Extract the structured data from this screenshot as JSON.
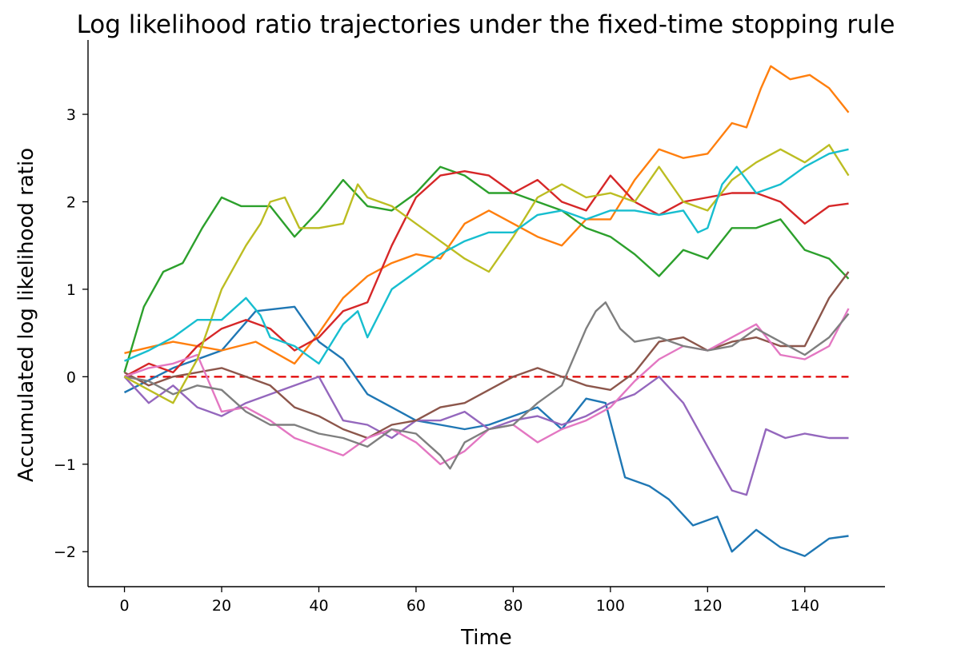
{
  "chart_data": {
    "type": "line",
    "title": "Log likelihood ratio trajectories under the fixed-time stopping rule",
    "xlabel": "Time",
    "ylabel": "Accumulated log likelihood ratio",
    "xlim": [
      -7.5,
      156.5
    ],
    "ylim": [
      -2.4,
      3.85
    ],
    "xticks": [
      0,
      20,
      40,
      60,
      80,
      100,
      120,
      140
    ],
    "yticks": [
      -2,
      -1,
      0,
      1,
      2,
      3
    ],
    "ytick_labels": [
      "−2",
      "−1",
      "0",
      "1",
      "2",
      "3"
    ],
    "grid": false,
    "reference_line": {
      "y": 0,
      "x_range": [
        0,
        149
      ],
      "color": "#e00000",
      "style": "dashed"
    },
    "series": [
      {
        "color": "#1f77b4",
        "x": [
          0,
          10,
          20,
          27,
          35,
          40,
          45,
          50,
          55,
          60,
          65,
          70,
          75,
          80,
          85,
          90,
          95,
          99,
          103,
          108,
          112,
          117,
          122,
          125,
          130,
          135,
          140,
          145,
          149
        ],
        "y": [
          -0.18,
          0.1,
          0.3,
          0.75,
          0.8,
          0.4,
          0.2,
          -0.2,
          -0.35,
          -0.5,
          -0.55,
          -0.6,
          -0.55,
          -0.45,
          -0.35,
          -0.6,
          -0.25,
          -0.3,
          -1.15,
          -1.25,
          -1.4,
          -1.7,
          -1.6,
          -2.0,
          -1.75,
          -1.95,
          -2.05,
          -1.85,
          -1.82
        ]
      },
      {
        "color": "#ff7f0e",
        "x": [
          0,
          10,
          20,
          27,
          35,
          40,
          45,
          50,
          55,
          60,
          65,
          70,
          75,
          80,
          85,
          90,
          95,
          100,
          105,
          110,
          115,
          120,
          125,
          128,
          131,
          133,
          137,
          141,
          145,
          149
        ],
        "y": [
          0.27,
          0.4,
          0.3,
          0.4,
          0.15,
          0.5,
          0.9,
          1.15,
          1.3,
          1.4,
          1.35,
          1.75,
          1.9,
          1.75,
          1.6,
          1.5,
          1.8,
          1.8,
          2.25,
          2.6,
          2.5,
          2.55,
          2.9,
          2.85,
          3.3,
          3.55,
          3.4,
          3.45,
          3.3,
          3.02
        ]
      },
      {
        "color": "#2ca02c",
        "x": [
          0,
          4,
          8,
          12,
          16,
          20,
          24,
          30,
          35,
          40,
          45,
          50,
          55,
          60,
          65,
          70,
          75,
          80,
          85,
          90,
          95,
          100,
          105,
          110,
          115,
          120,
          125,
          130,
          135,
          140,
          145,
          149
        ],
        "y": [
          0.05,
          0.8,
          1.2,
          1.3,
          1.7,
          2.05,
          1.95,
          1.95,
          1.6,
          1.9,
          2.25,
          1.95,
          1.9,
          2.1,
          2.4,
          2.3,
          2.1,
          2.1,
          2.0,
          1.9,
          1.7,
          1.6,
          1.4,
          1.15,
          1.45,
          1.35,
          1.7,
          1.7,
          1.8,
          1.45,
          1.35,
          1.12
        ]
      },
      {
        "color": "#d62728",
        "x": [
          0,
          5,
          10,
          15,
          20,
          25,
          30,
          35,
          40,
          45,
          50,
          55,
          60,
          65,
          70,
          75,
          80,
          85,
          90,
          95,
          100,
          105,
          110,
          115,
          120,
          125,
          130,
          135,
          140,
          145,
          149
        ],
        "y": [
          0.0,
          0.15,
          0.05,
          0.35,
          0.55,
          0.65,
          0.55,
          0.3,
          0.45,
          0.75,
          0.85,
          1.5,
          2.05,
          2.3,
          2.35,
          2.3,
          2.1,
          2.25,
          2.0,
          1.9,
          2.3,
          2.0,
          1.85,
          2.0,
          2.05,
          2.1,
          2.1,
          2.0,
          1.75,
          1.95,
          1.98
        ]
      },
      {
        "color": "#9467bd",
        "x": [
          0,
          5,
          10,
          15,
          20,
          25,
          30,
          35,
          40,
          45,
          50,
          55,
          60,
          65,
          70,
          75,
          80,
          85,
          90,
          95,
          100,
          105,
          110,
          115,
          120,
          125,
          128,
          132,
          136,
          140,
          145,
          149
        ],
        "y": [
          0.0,
          -0.3,
          -0.1,
          -0.35,
          -0.45,
          -0.3,
          -0.2,
          -0.1,
          0.0,
          -0.5,
          -0.55,
          -0.7,
          -0.5,
          -0.5,
          -0.4,
          -0.6,
          -0.5,
          -0.45,
          -0.55,
          -0.45,
          -0.3,
          -0.2,
          0.0,
          -0.3,
          -0.8,
          -1.3,
          -1.35,
          -0.6,
          -0.7,
          -0.65,
          -0.7,
          -0.7
        ]
      },
      {
        "color": "#8c564b",
        "x": [
          0,
          5,
          10,
          15,
          20,
          25,
          30,
          35,
          40,
          45,
          50,
          55,
          60,
          65,
          70,
          75,
          80,
          85,
          90,
          95,
          100,
          105,
          110,
          115,
          120,
          125,
          130,
          135,
          140,
          145,
          149
        ],
        "y": [
          0.05,
          -0.1,
          0.0,
          0.05,
          0.1,
          0.0,
          -0.1,
          -0.35,
          -0.45,
          -0.6,
          -0.7,
          -0.55,
          -0.5,
          -0.35,
          -0.3,
          -0.15,
          0.0,
          0.1,
          0.0,
          -0.1,
          -0.15,
          0.05,
          0.4,
          0.45,
          0.3,
          0.4,
          0.45,
          0.35,
          0.35,
          0.9,
          1.2
        ]
      },
      {
        "color": "#e377c2",
        "x": [
          0,
          5,
          10,
          15,
          20,
          25,
          30,
          35,
          40,
          45,
          50,
          55,
          60,
          65,
          70,
          75,
          80,
          85,
          90,
          95,
          100,
          105,
          110,
          115,
          120,
          125,
          130,
          135,
          140,
          145,
          149
        ],
        "y": [
          0.0,
          0.1,
          0.15,
          0.25,
          -0.4,
          -0.35,
          -0.5,
          -0.7,
          -0.8,
          -0.9,
          -0.7,
          -0.6,
          -0.75,
          -1.0,
          -0.85,
          -0.6,
          -0.55,
          -0.75,
          -0.6,
          -0.5,
          -0.35,
          -0.05,
          0.2,
          0.35,
          0.3,
          0.45,
          0.6,
          0.25,
          0.2,
          0.35,
          0.78
        ]
      },
      {
        "color": "#7f7f7f",
        "x": [
          0,
          5,
          10,
          15,
          20,
          25,
          30,
          35,
          40,
          45,
          50,
          55,
          60,
          65,
          67,
          70,
          75,
          80,
          85,
          90,
          95,
          97,
          99,
          102,
          105,
          110,
          115,
          120,
          125,
          130,
          135,
          140,
          145,
          149
        ],
        "y": [
          0.0,
          -0.05,
          -0.2,
          -0.1,
          -0.15,
          -0.4,
          -0.55,
          -0.55,
          -0.65,
          -0.7,
          -0.8,
          -0.6,
          -0.65,
          -0.9,
          -1.05,
          -0.75,
          -0.6,
          -0.55,
          -0.3,
          -0.1,
          0.55,
          0.75,
          0.85,
          0.55,
          0.4,
          0.45,
          0.35,
          0.3,
          0.35,
          0.55,
          0.4,
          0.25,
          0.45,
          0.72
        ]
      },
      {
        "color": "#bcbd22",
        "x": [
          0,
          5,
          10,
          15,
          20,
          25,
          28,
          30,
          33,
          36,
          40,
          45,
          48,
          50,
          55,
          60,
          65,
          70,
          75,
          80,
          85,
          90,
          95,
          100,
          105,
          110,
          115,
          120,
          125,
          130,
          135,
          140,
          145,
          149
        ],
        "y": [
          0.0,
          -0.15,
          -0.3,
          0.2,
          1.0,
          1.5,
          1.75,
          2.0,
          2.05,
          1.7,
          1.7,
          1.75,
          2.2,
          2.05,
          1.95,
          1.75,
          1.55,
          1.35,
          1.2,
          1.6,
          2.05,
          2.2,
          2.05,
          2.1,
          2.0,
          2.4,
          2.0,
          1.9,
          2.25,
          2.45,
          2.6,
          2.45,
          2.65,
          2.3
        ]
      },
      {
        "color": "#17becf",
        "x": [
          0,
          5,
          10,
          15,
          20,
          25,
          28,
          30,
          35,
          40,
          45,
          48,
          50,
          55,
          60,
          65,
          70,
          75,
          80,
          85,
          90,
          95,
          100,
          105,
          110,
          115,
          118,
          120,
          123,
          126,
          130,
          135,
          140,
          145,
          149
        ],
        "y": [
          0.18,
          0.3,
          0.45,
          0.65,
          0.65,
          0.9,
          0.7,
          0.45,
          0.35,
          0.15,
          0.6,
          0.75,
          0.45,
          1.0,
          1.2,
          1.4,
          1.55,
          1.65,
          1.65,
          1.85,
          1.9,
          1.8,
          1.9,
          1.9,
          1.85,
          1.9,
          1.65,
          1.7,
          2.2,
          2.4,
          2.1,
          2.2,
          2.4,
          2.55,
          2.6
        ]
      }
    ]
  }
}
